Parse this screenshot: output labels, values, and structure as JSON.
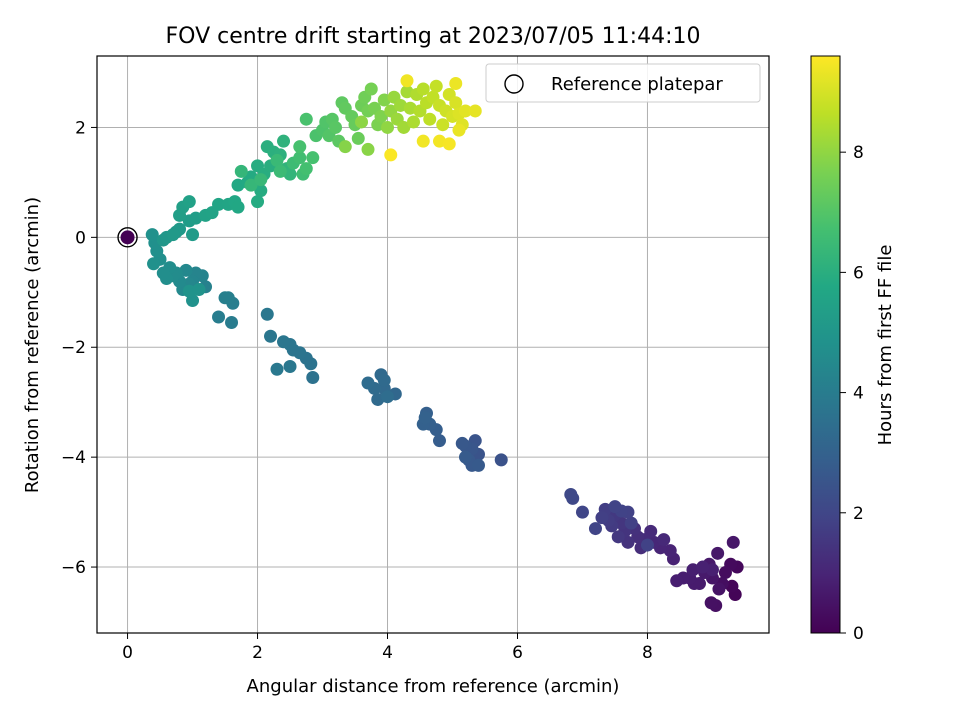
{
  "chart_data": {
    "type": "scatter",
    "title": "FOV centre drift starting at 2023/07/05 11:44:10",
    "xlabel": "Angular distance from reference (arcmin)",
    "ylabel": "Rotation from reference (arcmin)",
    "xlim": [
      -0.47,
      9.87
    ],
    "ylim": [
      -7.2,
      3.3
    ],
    "xticks": [
      0,
      2,
      4,
      6,
      8
    ],
    "yticks": [
      -6,
      -4,
      -2,
      0,
      2
    ],
    "grid": true,
    "legend": {
      "position": "top-right",
      "entries": [
        "Reference platepar"
      ]
    },
    "colorbar": {
      "label": "Hours from first FF file",
      "colormap": "viridis",
      "range": [
        0,
        9.6
      ],
      "ticks": [
        0,
        2,
        4,
        6,
        8
      ]
    },
    "reference_point": {
      "x": 0,
      "y": 0,
      "label": "Reference platepar"
    },
    "points": [
      {
        "x": 9.35,
        "y": -6.5,
        "c": 0.1
      },
      {
        "x": 9.3,
        "y": -6.35,
        "c": 0.15
      },
      {
        "x": 9.38,
        "y": -6.0,
        "c": 0.2
      },
      {
        "x": 9.28,
        "y": -5.95,
        "c": 0.25
      },
      {
        "x": 9.2,
        "y": -6.1,
        "c": 0.3
      },
      {
        "x": 9.15,
        "y": -6.3,
        "c": 0.35
      },
      {
        "x": 9.05,
        "y": -6.7,
        "c": 0.4
      },
      {
        "x": 8.98,
        "y": -6.65,
        "c": 0.45
      },
      {
        "x": 9.1,
        "y": -6.4,
        "c": 0.5
      },
      {
        "x": 9.0,
        "y": -6.2,
        "c": 0.55
      },
      {
        "x": 9.32,
        "y": -5.55,
        "c": 0.6
      },
      {
        "x": 9.08,
        "y": -5.75,
        "c": 0.62
      },
      {
        "x": 8.95,
        "y": -5.95,
        "c": 0.65
      },
      {
        "x": 8.88,
        "y": -6.1,
        "c": 0.68
      },
      {
        "x": 8.8,
        "y": -6.3,
        "c": 0.7
      },
      {
        "x": 8.72,
        "y": -6.3,
        "c": 0.72
      },
      {
        "x": 8.65,
        "y": -6.2,
        "c": 0.75
      },
      {
        "x": 8.55,
        "y": -6.2,
        "c": 0.78
      },
      {
        "x": 8.45,
        "y": -6.25,
        "c": 0.8
      },
      {
        "x": 8.7,
        "y": -6.05,
        "c": 0.82
      },
      {
        "x": 9.0,
        "y": -6.05,
        "c": 0.85
      },
      {
        "x": 8.85,
        "y": -6.0,
        "c": 0.88
      },
      {
        "x": 8.4,
        "y": -5.85,
        "c": 0.9
      },
      {
        "x": 8.35,
        "y": -5.7,
        "c": 0.95
      },
      {
        "x": 8.2,
        "y": -5.65,
        "c": 1.0
      },
      {
        "x": 8.1,
        "y": -5.55,
        "c": 1.05
      },
      {
        "x": 8.25,
        "y": -5.5,
        "c": 1.1
      },
      {
        "x": 8.05,
        "y": -5.35,
        "c": 1.15
      },
      {
        "x": 7.95,
        "y": -5.5,
        "c": 1.2
      },
      {
        "x": 7.9,
        "y": -5.65,
        "c": 1.25
      },
      {
        "x": 7.85,
        "y": -5.45,
        "c": 1.3
      },
      {
        "x": 7.8,
        "y": -5.3,
        "c": 1.35
      },
      {
        "x": 7.7,
        "y": -5.55,
        "c": 1.4
      },
      {
        "x": 7.65,
        "y": -5.35,
        "c": 1.45
      },
      {
        "x": 7.6,
        "y": -5.2,
        "c": 1.5
      },
      {
        "x": 7.55,
        "y": -5.45,
        "c": 1.55
      },
      {
        "x": 7.5,
        "y": -5.05,
        "c": 1.6
      },
      {
        "x": 7.45,
        "y": -5.25,
        "c": 1.65
      },
      {
        "x": 7.4,
        "y": -5.15,
        "c": 1.7
      },
      {
        "x": 7.35,
        "y": -4.95,
        "c": 1.75
      },
      {
        "x": 7.3,
        "y": -5.1,
        "c": 1.8
      },
      {
        "x": 7.75,
        "y": -5.2,
        "c": 1.82
      },
      {
        "x": 7.7,
        "y": -5.0,
        "c": 1.85
      },
      {
        "x": 8.0,
        "y": -5.6,
        "c": 1.87
      },
      {
        "x": 7.6,
        "y": -4.98,
        "c": 1.9
      },
      {
        "x": 7.5,
        "y": -4.9,
        "c": 1.93
      },
      {
        "x": 7.2,
        "y": -5.3,
        "c": 1.95
      },
      {
        "x": 7.0,
        "y": -5.0,
        "c": 2.0
      },
      {
        "x": 6.85,
        "y": -4.75,
        "c": 2.05
      },
      {
        "x": 6.82,
        "y": -4.68,
        "c": 2.1
      },
      {
        "x": 5.75,
        "y": -4.05,
        "c": 2.4
      },
      {
        "x": 5.4,
        "y": -3.95,
        "c": 2.45
      },
      {
        "x": 5.35,
        "y": -3.7,
        "c": 2.5
      },
      {
        "x": 5.3,
        "y": -3.85,
        "c": 2.55
      },
      {
        "x": 5.2,
        "y": -3.8,
        "c": 2.6
      },
      {
        "x": 5.15,
        "y": -3.75,
        "c": 2.62
      },
      {
        "x": 5.25,
        "y": -4.05,
        "c": 2.65
      },
      {
        "x": 5.3,
        "y": -4.15,
        "c": 2.68
      },
      {
        "x": 5.4,
        "y": -4.15,
        "c": 2.7
      },
      {
        "x": 5.2,
        "y": -4.0,
        "c": 2.72
      },
      {
        "x": 4.8,
        "y": -3.7,
        "c": 2.8
      },
      {
        "x": 4.75,
        "y": -3.5,
        "c": 2.85
      },
      {
        "x": 4.65,
        "y": -3.4,
        "c": 2.9
      },
      {
        "x": 4.6,
        "y": -3.2,
        "c": 2.92
      },
      {
        "x": 4.55,
        "y": -3.4,
        "c": 2.95
      },
      {
        "x": 4.58,
        "y": -3.28,
        "c": 2.98
      },
      {
        "x": 4.12,
        "y": -2.85,
        "c": 3.2
      },
      {
        "x": 3.95,
        "y": -2.75,
        "c": 3.25
      },
      {
        "x": 3.9,
        "y": -2.5,
        "c": 3.28
      },
      {
        "x": 3.95,
        "y": -2.6,
        "c": 3.3
      },
      {
        "x": 3.85,
        "y": -2.95,
        "c": 3.32
      },
      {
        "x": 3.8,
        "y": -2.75,
        "c": 3.35
      },
      {
        "x": 3.7,
        "y": -2.65,
        "c": 3.38
      },
      {
        "x": 4.0,
        "y": -2.9,
        "c": 3.4
      },
      {
        "x": 2.85,
        "y": -2.55,
        "c": 3.6
      },
      {
        "x": 2.82,
        "y": -2.3,
        "c": 3.63
      },
      {
        "x": 2.75,
        "y": -2.2,
        "c": 3.65
      },
      {
        "x": 2.65,
        "y": -2.1,
        "c": 3.68
      },
      {
        "x": 2.55,
        "y": -2.05,
        "c": 3.7
      },
      {
        "x": 2.5,
        "y": -1.95,
        "c": 3.72
      },
      {
        "x": 2.4,
        "y": -1.9,
        "c": 3.75
      },
      {
        "x": 2.2,
        "y": -1.8,
        "c": 3.78
      },
      {
        "x": 2.15,
        "y": -1.4,
        "c": 3.8
      },
      {
        "x": 2.5,
        "y": -2.35,
        "c": 3.82
      },
      {
        "x": 2.3,
        "y": -2.4,
        "c": 3.85
      },
      {
        "x": 1.6,
        "y": -1.55,
        "c": 4.0
      },
      {
        "x": 1.4,
        "y": -1.45,
        "c": 4.05
      },
      {
        "x": 1.62,
        "y": -1.2,
        "c": 4.08
      },
      {
        "x": 1.55,
        "y": -1.1,
        "c": 4.1
      },
      {
        "x": 1.5,
        "y": -1.1,
        "c": 4.12
      },
      {
        "x": 1.2,
        "y": -0.9,
        "c": 4.2
      },
      {
        "x": 1.15,
        "y": -0.7,
        "c": 4.25
      },
      {
        "x": 1.05,
        "y": -0.65,
        "c": 4.3
      },
      {
        "x": 1.0,
        "y": -0.8,
        "c": 4.35
      },
      {
        "x": 0.95,
        "y": -0.85,
        "c": 4.4
      },
      {
        "x": 0.9,
        "y": -0.6,
        "c": 4.45
      },
      {
        "x": 0.85,
        "y": -0.95,
        "c": 4.5
      },
      {
        "x": 0.8,
        "y": -0.8,
        "c": 4.55
      },
      {
        "x": 0.75,
        "y": -0.65,
        "c": 4.6
      },
      {
        "x": 0.7,
        "y": -0.7,
        "c": 4.62
      },
      {
        "x": 0.65,
        "y": -0.55,
        "c": 4.65
      },
      {
        "x": 0.6,
        "y": -0.75,
        "c": 4.68
      },
      {
        "x": 0.55,
        "y": -0.65,
        "c": 4.7
      },
      {
        "x": 0.5,
        "y": -0.4,
        "c": 4.72
      },
      {
        "x": 0.45,
        "y": -0.25,
        "c": 4.75
      },
      {
        "x": 0.42,
        "y": -0.1,
        "c": 4.78
      },
      {
        "x": 0.38,
        "y": 0.05,
        "c": 4.8
      },
      {
        "x": 0.4,
        "y": -0.48,
        "c": 4.82
      },
      {
        "x": 1.0,
        "y": -1.15,
        "c": 4.85
      },
      {
        "x": 0.95,
        "y": -0.98,
        "c": 4.88
      },
      {
        "x": 1.1,
        "y": -0.95,
        "c": 4.9
      },
      {
        "x": 0.55,
        "y": -0.05,
        "c": 5.0
      },
      {
        "x": 0.6,
        "y": 0.0,
        "c": 5.05
      },
      {
        "x": 0.75,
        "y": 0.1,
        "c": 5.1
      },
      {
        "x": 0.8,
        "y": 0.15,
        "c": 5.12
      },
      {
        "x": 0.7,
        "y": 0.05,
        "c": 5.15
      },
      {
        "x": 1.0,
        "y": 0.05,
        "c": 5.2
      },
      {
        "x": 0.95,
        "y": 0.3,
        "c": 5.25
      },
      {
        "x": 1.05,
        "y": 0.35,
        "c": 5.3
      },
      {
        "x": 0.8,
        "y": 0.4,
        "c": 5.35
      },
      {
        "x": 0.85,
        "y": 0.55,
        "c": 5.4
      },
      {
        "x": 0.95,
        "y": 0.65,
        "c": 5.45
      },
      {
        "x": 1.2,
        "y": 0.4,
        "c": 5.5
      },
      {
        "x": 1.3,
        "y": 0.45,
        "c": 5.55
      },
      {
        "x": 1.4,
        "y": 0.6,
        "c": 5.6
      },
      {
        "x": 1.55,
        "y": 0.6,
        "c": 5.65
      },
      {
        "x": 1.65,
        "y": 0.65,
        "c": 5.7
      },
      {
        "x": 1.7,
        "y": 0.55,
        "c": 5.72
      },
      {
        "x": 1.7,
        "y": 0.95,
        "c": 5.75
      },
      {
        "x": 1.85,
        "y": 1.0,
        "c": 5.8
      },
      {
        "x": 1.9,
        "y": 1.1,
        "c": 5.85
      },
      {
        "x": 2.0,
        "y": 0.65,
        "c": 5.88
      },
      {
        "x": 2.05,
        "y": 0.85,
        "c": 5.9
      },
      {
        "x": 2.0,
        "y": 1.3,
        "c": 5.92
      },
      {
        "x": 2.1,
        "y": 1.15,
        "c": 5.95
      },
      {
        "x": 2.2,
        "y": 1.3,
        "c": 5.98
      },
      {
        "x": 2.15,
        "y": 1.65,
        "c": 6.0
      },
      {
        "x": 2.25,
        "y": 1.55,
        "c": 6.05
      },
      {
        "x": 2.35,
        "y": 1.5,
        "c": 6.1
      },
      {
        "x": 2.4,
        "y": 1.75,
        "c": 6.15
      },
      {
        "x": 2.45,
        "y": 1.25,
        "c": 6.2
      },
      {
        "x": 2.5,
        "y": 1.15,
        "c": 6.25
      },
      {
        "x": 1.75,
        "y": 1.2,
        "c": 6.3
      },
      {
        "x": 1.9,
        "y": 0.95,
        "c": 6.35
      },
      {
        "x": 2.05,
        "y": 1.05,
        "c": 6.4
      },
      {
        "x": 2.3,
        "y": 1.4,
        "c": 6.45
      },
      {
        "x": 2.35,
        "y": 1.2,
        "c": 6.5
      },
      {
        "x": 2.55,
        "y": 1.35,
        "c": 6.55
      },
      {
        "x": 2.7,
        "y": 1.15,
        "c": 6.6
      },
      {
        "x": 2.65,
        "y": 1.45,
        "c": 6.65
      },
      {
        "x": 2.75,
        "y": 1.25,
        "c": 6.7
      },
      {
        "x": 2.85,
        "y": 1.45,
        "c": 6.75
      },
      {
        "x": 2.65,
        "y": 1.65,
        "c": 6.78
      },
      {
        "x": 2.75,
        "y": 2.15,
        "c": 6.8
      },
      {
        "x": 2.9,
        "y": 1.85,
        "c": 6.85
      },
      {
        "x": 3.0,
        "y": 1.95,
        "c": 6.9
      },
      {
        "x": 3.05,
        "y": 2.1,
        "c": 6.95
      },
      {
        "x": 3.1,
        "y": 1.85,
        "c": 7.0
      },
      {
        "x": 3.15,
        "y": 2.15,
        "c": 7.05
      },
      {
        "x": 3.2,
        "y": 2.0,
        "c": 7.1
      },
      {
        "x": 3.25,
        "y": 1.75,
        "c": 7.15
      },
      {
        "x": 3.3,
        "y": 2.45,
        "c": 7.2
      },
      {
        "x": 3.35,
        "y": 2.35,
        "c": 7.25
      },
      {
        "x": 3.45,
        "y": 2.2,
        "c": 7.3
      },
      {
        "x": 3.5,
        "y": 2.05,
        "c": 7.35
      },
      {
        "x": 3.55,
        "y": 1.8,
        "c": 7.4
      },
      {
        "x": 3.6,
        "y": 2.4,
        "c": 7.45
      },
      {
        "x": 3.65,
        "y": 2.55,
        "c": 7.5
      },
      {
        "x": 3.7,
        "y": 2.3,
        "c": 7.55
      },
      {
        "x": 3.75,
        "y": 2.7,
        "c": 7.6
      },
      {
        "x": 3.8,
        "y": 2.35,
        "c": 7.65
      },
      {
        "x": 3.85,
        "y": 2.05,
        "c": 7.7
      },
      {
        "x": 3.9,
        "y": 2.2,
        "c": 7.75
      },
      {
        "x": 3.95,
        "y": 2.5,
        "c": 7.8
      },
      {
        "x": 3.35,
        "y": 1.65,
        "c": 7.85
      },
      {
        "x": 3.7,
        "y": 1.6,
        "c": 7.9
      },
      {
        "x": 3.6,
        "y": 2.1,
        "c": 7.95
      },
      {
        "x": 4.0,
        "y": 2.0,
        "c": 8.0
      },
      {
        "x": 4.05,
        "y": 2.3,
        "c": 8.05
      },
      {
        "x": 4.1,
        "y": 2.55,
        "c": 8.1
      },
      {
        "x": 4.15,
        "y": 2.15,
        "c": 8.15
      },
      {
        "x": 4.2,
        "y": 2.4,
        "c": 8.2
      },
      {
        "x": 4.25,
        "y": 2.0,
        "c": 8.25
      },
      {
        "x": 4.3,
        "y": 2.65,
        "c": 8.3
      },
      {
        "x": 4.35,
        "y": 2.35,
        "c": 8.35
      },
      {
        "x": 4.4,
        "y": 2.1,
        "c": 8.4
      },
      {
        "x": 4.45,
        "y": 2.6,
        "c": 8.45
      },
      {
        "x": 4.5,
        "y": 2.3,
        "c": 8.5
      },
      {
        "x": 4.55,
        "y": 2.7,
        "c": 8.55
      },
      {
        "x": 4.6,
        "y": 2.45,
        "c": 8.6
      },
      {
        "x": 4.65,
        "y": 2.15,
        "c": 8.65
      },
      {
        "x": 4.7,
        "y": 2.55,
        "c": 8.7
      },
      {
        "x": 4.75,
        "y": 2.75,
        "c": 8.75
      },
      {
        "x": 4.8,
        "y": 2.4,
        "c": 8.8
      },
      {
        "x": 4.85,
        "y": 2.05,
        "c": 8.85
      },
      {
        "x": 4.9,
        "y": 2.3,
        "c": 8.9
      },
      {
        "x": 4.95,
        "y": 2.6,
        "c": 8.95
      },
      {
        "x": 5.0,
        "y": 2.2,
        "c": 9.0
      },
      {
        "x": 5.05,
        "y": 2.45,
        "c": 9.05
      },
      {
        "x": 5.1,
        "y": 2.25,
        "c": 9.1
      },
      {
        "x": 5.15,
        "y": 2.05,
        "c": 9.15
      },
      {
        "x": 5.2,
        "y": 2.3,
        "c": 9.2
      },
      {
        "x": 5.35,
        "y": 2.3,
        "c": 9.25
      },
      {
        "x": 5.1,
        "y": 1.95,
        "c": 9.3
      },
      {
        "x": 5.05,
        "y": 2.8,
        "c": 9.35
      },
      {
        "x": 4.3,
        "y": 2.85,
        "c": 9.4
      },
      {
        "x": 4.55,
        "y": 1.75,
        "c": 9.42
      },
      {
        "x": 4.8,
        "y": 1.75,
        "c": 9.45
      },
      {
        "x": 4.95,
        "y": 1.7,
        "c": 9.5
      },
      {
        "x": 4.05,
        "y": 1.5,
        "c": 9.55
      }
    ]
  }
}
